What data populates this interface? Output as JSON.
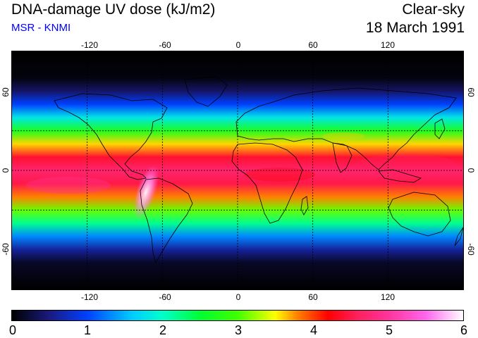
{
  "header": {
    "title": "DNA-damage UV dose (kJ/m2)",
    "source": "MSR - KNMI",
    "condition": "Clear-sky",
    "date": "18 March 1991"
  },
  "map": {
    "projection": "equirectangular",
    "lon_range": [
      -180,
      180
    ],
    "lat_range": [
      -90,
      90
    ],
    "lon_ticks": [
      "-120",
      "-60",
      "0",
      "60",
      "120"
    ],
    "lat_ticks": [
      "60",
      "0",
      "-60"
    ],
    "grid_lats": [
      30,
      0,
      -30
    ],
    "grid_lons": [
      -120,
      -60,
      0,
      60,
      120
    ],
    "dose_profile_by_latitude": [
      {
        "lat": 90,
        "dose": 0.0
      },
      {
        "lat": 70,
        "dose": 0.05
      },
      {
        "lat": 60,
        "dose": 0.4
      },
      {
        "lat": 50,
        "dose": 1.0
      },
      {
        "lat": 40,
        "dose": 1.8
      },
      {
        "lat": 30,
        "dose": 2.7
      },
      {
        "lat": 20,
        "dose": 3.6
      },
      {
        "lat": 10,
        "dose": 4.4
      },
      {
        "lat": 0,
        "dose": 4.7
      },
      {
        "lat": -10,
        "dose": 4.5
      },
      {
        "lat": -20,
        "dose": 3.8
      },
      {
        "lat": -30,
        "dose": 3.1
      },
      {
        "lat": -40,
        "dose": 2.2
      },
      {
        "lat": -50,
        "dose": 1.3
      },
      {
        "lat": -60,
        "dose": 0.6
      },
      {
        "lat": -70,
        "dose": 0.15
      },
      {
        "lat": -90,
        "dose": 0.0
      }
    ],
    "andes_peak_dose": 5.8
  },
  "colorbar": {
    "min": 0,
    "max": 6,
    "tick_labels": [
      "0",
      "1",
      "2",
      "3",
      "4",
      "5",
      "6"
    ],
    "stops": [
      {
        "value": 0.0,
        "color": "#000000"
      },
      {
        "value": 0.5,
        "color": "#1a1a80"
      },
      {
        "value": 1.0,
        "color": "#0040ff"
      },
      {
        "value": 1.6,
        "color": "#00ccff"
      },
      {
        "value": 2.0,
        "color": "#00ffcc"
      },
      {
        "value": 2.5,
        "color": "#00ff33"
      },
      {
        "value": 3.0,
        "color": "#40ff00"
      },
      {
        "value": 3.5,
        "color": "#ffff00"
      },
      {
        "value": 3.8,
        "color": "#ff8000"
      },
      {
        "value": 4.2,
        "color": "#ff0000"
      },
      {
        "value": 4.6,
        "color": "#ff2060"
      },
      {
        "value": 5.0,
        "color": "#ff3399"
      },
      {
        "value": 5.5,
        "color": "#ff66ee"
      },
      {
        "value": 6.0,
        "color": "#ffffff"
      }
    ]
  }
}
